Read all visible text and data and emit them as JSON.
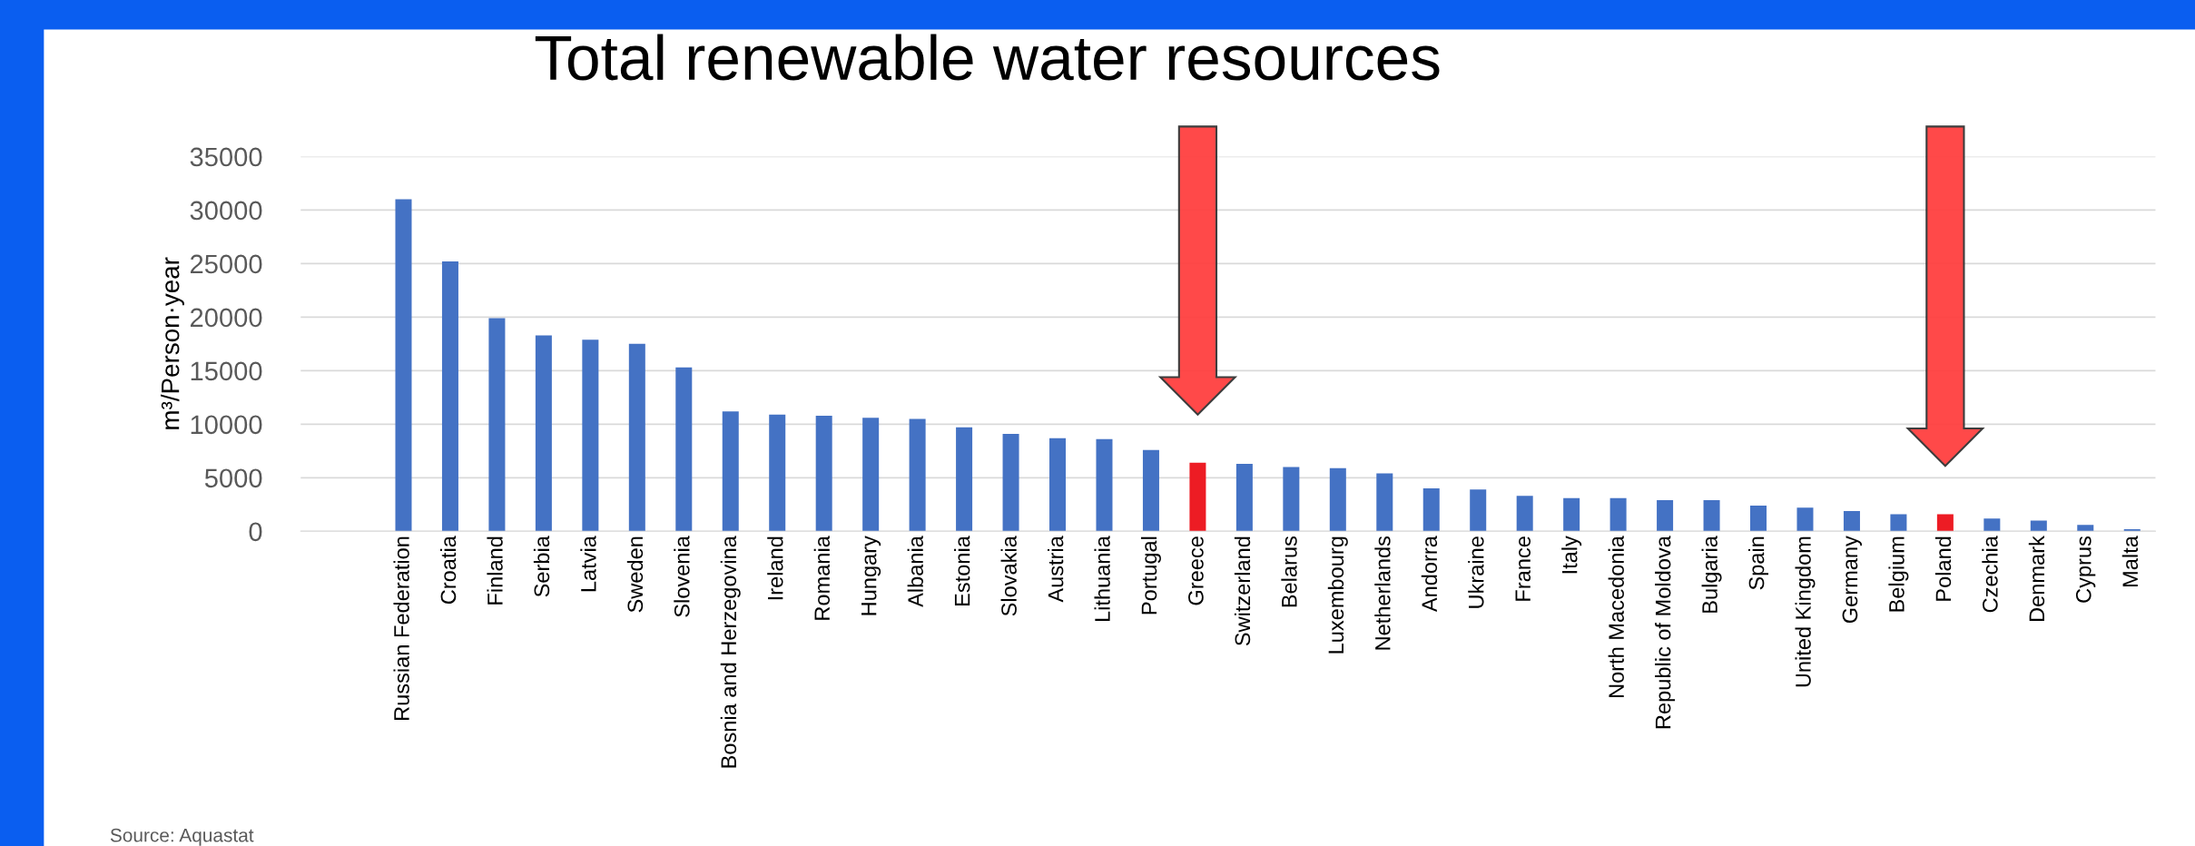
{
  "chart_data": {
    "type": "bar",
    "title": "Total renewable water resources",
    "ylabel": "m³/Person·year",
    "categories": [
      "Russian Federation",
      "Croatia",
      "Finland",
      "Serbia",
      "Latvia",
      "Sweden",
      "Slovenia",
      "Bosnia and Herzegovina",
      "Ireland",
      "Romania",
      "Hungary",
      "Albania",
      "Estonia",
      "Slovakia",
      "Austria",
      "Lithuania",
      "Portugal",
      "Greece",
      "Switzerland",
      "Belarus",
      "Luxembourg",
      "Netherlands",
      "Andorra",
      "Ukraine",
      "France",
      "Italy",
      "North Macedonia",
      "Republic of Moldova",
      "Bulgaria",
      "Spain",
      "United Kingdom",
      "Germany",
      "Belgium",
      "Poland",
      "Czechia",
      "Denmark",
      "Cyprus",
      "Malta"
    ],
    "values": [
      31000,
      25200,
      19900,
      18300,
      17900,
      17500,
      15300,
      11200,
      10900,
      10800,
      10600,
      10500,
      9700,
      9100,
      8700,
      8600,
      7600,
      6400,
      6300,
      6000,
      5900,
      5400,
      4000,
      3900,
      3300,
      3100,
      3100,
      2900,
      2900,
      2400,
      2200,
      1900,
      1600,
      1600,
      1200,
      1000,
      600,
      200
    ],
    "colors": [
      "#4472c4",
      "#4472c4",
      "#4472c4",
      "#4472c4",
      "#4472c4",
      "#4472c4",
      "#4472c4",
      "#4472c4",
      "#4472c4",
      "#4472c4",
      "#4472c4",
      "#4472c4",
      "#4472c4",
      "#4472c4",
      "#4472c4",
      "#4472c4",
      "#4472c4",
      "#ed1c24",
      "#4472c4",
      "#4472c4",
      "#4472c4",
      "#4472c4",
      "#4472c4",
      "#4472c4",
      "#4472c4",
      "#4472c4",
      "#4472c4",
      "#4472c4",
      "#4472c4",
      "#4472c4",
      "#4472c4",
      "#4472c4",
      "#4472c4",
      "#ed1c24",
      "#4472c4",
      "#4472c4",
      "#4472c4",
      "#4472c4"
    ],
    "ylim": [
      0,
      35000
    ],
    "yticks": [
      0,
      5000,
      10000,
      15000,
      20000,
      25000,
      30000,
      35000
    ],
    "grid": "y",
    "annotations": [
      "Source: Aquastat"
    ]
  }
}
